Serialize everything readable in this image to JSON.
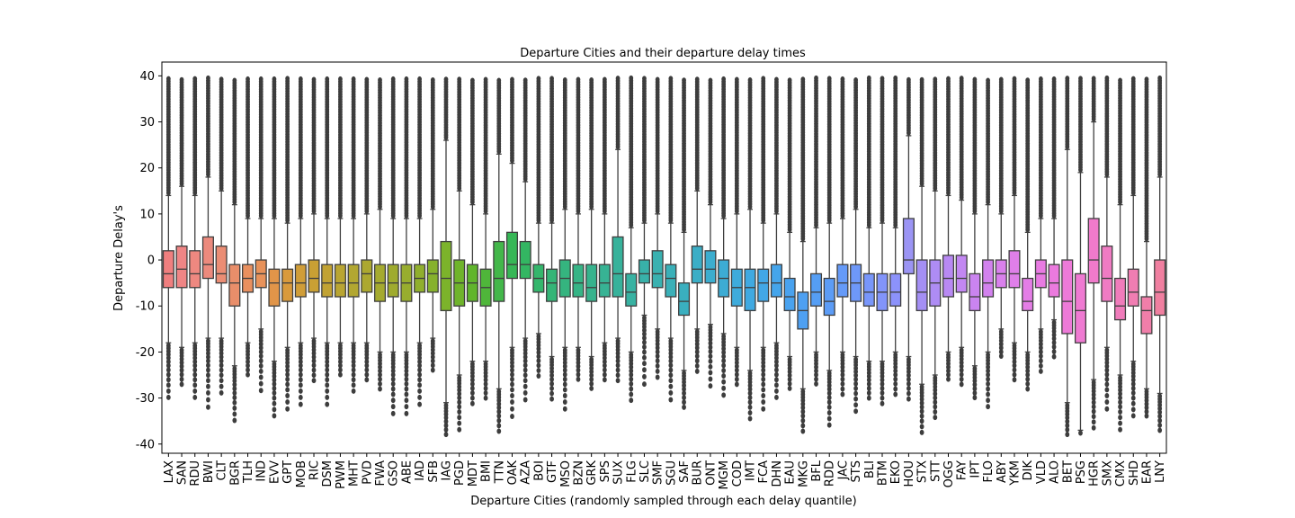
{
  "chart_data": {
    "type": "box",
    "title": "Departure Cities and their departure delay times",
    "xlabel": "Departure Cities (randomly sampled through each delay quantile)",
    "ylabel": "Departure Delay's",
    "ylim": [
      -42,
      43
    ],
    "yticks": [
      -40,
      -30,
      -20,
      -10,
      0,
      10,
      20,
      30,
      40
    ],
    "grid": false,
    "legend": "none",
    "outlier_marker_color": "#3d3d3d",
    "box_edge_color": "#3f3f3f",
    "categories": [
      "LAX",
      "SAN",
      "RDU",
      "BWI",
      "CLT",
      "BGR",
      "TLH",
      "IND",
      "EVV",
      "GPT",
      "MOB",
      "RIC",
      "DSM",
      "PWM",
      "MHT",
      "PVD",
      "FWA",
      "GSO",
      "ABE",
      "IAD",
      "SFB",
      "IAG",
      "PGD",
      "MDT",
      "BMI",
      "TTN",
      "OAK",
      "AZA",
      "BOI",
      "GTF",
      "MSO",
      "BZN",
      "GRK",
      "SPS",
      "SUX",
      "FLG",
      "SLC",
      "SMF",
      "SGU",
      "SAF",
      "BUR",
      "ONT",
      "MGM",
      "COD",
      "IMT",
      "FCA",
      "DHN",
      "EAU",
      "MKG",
      "BFL",
      "RDD",
      "JAC",
      "STS",
      "BLI",
      "BTM",
      "EKO",
      "HOU",
      "STX",
      "STT",
      "OGG",
      "FAY",
      "IPT",
      "FLO",
      "ABY",
      "YKM",
      "DIK",
      "VLD",
      "ALO",
      "BET",
      "PSG",
      "HGR",
      "SMX",
      "CMX",
      "SHD",
      "EAR",
      "LNY"
    ],
    "boxes": [
      {
        "q1": -6,
        "median": -3,
        "q3": 2,
        "wlow": -18,
        "whigh": 14,
        "color": "#f07f7f"
      },
      {
        "q1": -6,
        "median": -2,
        "q3": 3,
        "wlow": -19,
        "whigh": 16,
        "color": "#ef8585"
      },
      {
        "q1": -6,
        "median": -3,
        "q3": 2,
        "wlow": -18,
        "whigh": 14,
        "color": "#ee8880"
      },
      {
        "q1": -4,
        "median": -1,
        "q3": 5,
        "wlow": -17,
        "whigh": 18,
        "color": "#ec8a7d"
      },
      {
        "q1": -5,
        "median": -3,
        "q3": 3,
        "wlow": -17,
        "whigh": 15,
        "color": "#eb8d74"
      },
      {
        "q1": -10,
        "median": -5,
        "q3": -1,
        "wlow": -23,
        "whigh": 12,
        "color": "#e98e6a"
      },
      {
        "q1": -7,
        "median": -4,
        "q3": -1,
        "wlow": -18,
        "whigh": 9,
        "color": "#e9905f"
      },
      {
        "q1": -6,
        "median": -3,
        "q3": 0,
        "wlow": -15,
        "whigh": 9,
        "color": "#e8925a"
      },
      {
        "q1": -10,
        "median": -5,
        "q3": -2,
        "wlow": -22,
        "whigh": 9,
        "color": "#e19549"
      },
      {
        "q1": -9,
        "median": -5,
        "q3": -2,
        "wlow": -19,
        "whigh": 8,
        "color": "#d99a3c"
      },
      {
        "q1": -8,
        "median": -5,
        "q3": -1,
        "wlow": -18,
        "whigh": 9,
        "color": "#d09d38"
      },
      {
        "q1": -7,
        "median": -4,
        "q3": 0,
        "wlow": -17,
        "whigh": 10,
        "color": "#c9a034"
      },
      {
        "q1": -8,
        "median": -5,
        "q3": -1,
        "wlow": -18,
        "whigh": 9,
        "color": "#c1a233"
      },
      {
        "q1": -8,
        "median": -5,
        "q3": -1,
        "wlow": -18,
        "whigh": 9,
        "color": "#b9a532"
      },
      {
        "q1": -8,
        "median": -5,
        "q3": -1,
        "wlow": -18,
        "whigh": 9,
        "color": "#b2a731"
      },
      {
        "q1": -7,
        "median": -3,
        "q3": 0,
        "wlow": -18,
        "whigh": 10,
        "color": "#aca830"
      },
      {
        "q1": -9,
        "median": -5,
        "q3": -1,
        "wlow": -20,
        "whigh": 11,
        "color": "#a5aa2f"
      },
      {
        "q1": -8,
        "median": -5,
        "q3": -1,
        "wlow": -20,
        "whigh": 9,
        "color": "#9fab2e"
      },
      {
        "q1": -9,
        "median": -5,
        "q3": -1,
        "wlow": -20,
        "whigh": 9,
        "color": "#98ad2e"
      },
      {
        "q1": -7,
        "median": -4,
        "q3": -1,
        "wlow": -18,
        "whigh": 9,
        "color": "#90af2d"
      },
      {
        "q1": -7,
        "median": -3,
        "q3": 0,
        "wlow": -17,
        "whigh": 11,
        "color": "#86b12c"
      },
      {
        "q1": -11,
        "median": -4,
        "q3": 4,
        "wlow": -31,
        "whigh": 26,
        "color": "#7cb32b"
      },
      {
        "q1": -10,
        "median": -5,
        "q3": 0,
        "wlow": -25,
        "whigh": 15,
        "color": "#6fb42b"
      },
      {
        "q1": -9,
        "median": -5,
        "q3": -1,
        "wlow": -22,
        "whigh": 12,
        "color": "#60b52c"
      },
      {
        "q1": -10,
        "median": -6,
        "q3": -2,
        "wlow": -22,
        "whigh": 10,
        "color": "#4fb63a"
      },
      {
        "q1": -9,
        "median": -4,
        "q3": 4,
        "wlow": -28,
        "whigh": 23,
        "color": "#43b74a"
      },
      {
        "q1": -4,
        "median": -1,
        "q3": 6,
        "wlow": -19,
        "whigh": 21,
        "color": "#37b756"
      },
      {
        "q1": -4,
        "median": -1,
        "q3": 4,
        "wlow": -17,
        "whigh": 17,
        "color": "#33b662"
      },
      {
        "q1": -7,
        "median": -4,
        "q3": -1,
        "wlow": -16,
        "whigh": 8,
        "color": "#34b66c"
      },
      {
        "q1": -9,
        "median": -5,
        "q3": -2,
        "wlow": -21,
        "whigh": 8,
        "color": "#35b577"
      },
      {
        "q1": -8,
        "median": -4,
        "q3": 0,
        "wlow": -19,
        "whigh": 11,
        "color": "#35b47f"
      },
      {
        "q1": -8,
        "median": -5,
        "q3": -1,
        "wlow": -19,
        "whigh": 10,
        "color": "#36b486"
      },
      {
        "q1": -9,
        "median": -6,
        "q3": -1,
        "wlow": -21,
        "whigh": 11,
        "color": "#36b38d"
      },
      {
        "q1": -8,
        "median": -5,
        "q3": -1,
        "wlow": -18,
        "whigh": 10,
        "color": "#37b394"
      },
      {
        "q1": -8,
        "median": -3,
        "q3": 5,
        "wlow": -17,
        "whigh": 24,
        "color": "#37b29b"
      },
      {
        "q1": -10,
        "median": -7,
        "q3": -3,
        "wlow": -20,
        "whigh": 7,
        "color": "#38b2a2"
      },
      {
        "q1": -5,
        "median": -3,
        "q3": 0,
        "wlow": -12,
        "whigh": 8,
        "color": "#38b1a9"
      },
      {
        "q1": -6,
        "median": -3,
        "q3": 2,
        "wlow": -15,
        "whigh": 10,
        "color": "#39b1b0"
      },
      {
        "q1": -8,
        "median": -4,
        "q3": -1,
        "wlow": -17,
        "whigh": 8,
        "color": "#3ab0b8"
      },
      {
        "q1": -12,
        "median": -9,
        "q3": -5,
        "wlow": -24,
        "whigh": 6,
        "color": "#3aafbf"
      },
      {
        "q1": -5,
        "median": -2,
        "q3": 3,
        "wlow": -15,
        "whigh": 15,
        "color": "#3baec6"
      },
      {
        "q1": -5,
        "median": -2,
        "q3": 2,
        "wlow": -14,
        "whigh": 12,
        "color": "#3cadce"
      },
      {
        "q1": -8,
        "median": -4,
        "q3": 0,
        "wlow": -16,
        "whigh": 9,
        "color": "#3dacd4"
      },
      {
        "q1": -10,
        "median": -6,
        "q3": -2,
        "wlow": -19,
        "whigh": 10,
        "color": "#3eabdb"
      },
      {
        "q1": -11,
        "median": -6,
        "q3": -2,
        "wlow": -24,
        "whigh": 11,
        "color": "#40a9e1"
      },
      {
        "q1": -9,
        "median": -5,
        "q3": -2,
        "wlow": -19,
        "whigh": 8,
        "color": "#42a7e6"
      },
      {
        "q1": -8,
        "median": -5,
        "q3": -1,
        "wlow": -18,
        "whigh": 10,
        "color": "#45a5eb"
      },
      {
        "q1": -11,
        "median": -8,
        "q3": -4,
        "wlow": -21,
        "whigh": 6,
        "color": "#49a2ef"
      },
      {
        "q1": -15,
        "median": -11,
        "q3": -7,
        "wlow": -28,
        "whigh": 4,
        "color": "#4ea0f2"
      },
      {
        "q1": -10,
        "median": -7,
        "q3": -3,
        "wlow": -20,
        "whigh": 7,
        "color": "#559ef4"
      },
      {
        "q1": -12,
        "median": -9,
        "q3": -4,
        "wlow": -24,
        "whigh": 8,
        "color": "#5c9cf6"
      },
      {
        "q1": -8,
        "median": -5,
        "q3": -1,
        "wlow": -20,
        "whigh": 9,
        "color": "#659af8"
      },
      {
        "q1": -9,
        "median": -5,
        "q3": -1,
        "wlow": -21,
        "whigh": 11,
        "color": "#6e98f9"
      },
      {
        "q1": -10,
        "median": -7,
        "q3": -3,
        "wlow": -22,
        "whigh": 7,
        "color": "#7896fa"
      },
      {
        "q1": -11,
        "median": -7,
        "q3": -3,
        "wlow": -22,
        "whigh": 8,
        "color": "#8294fa"
      },
      {
        "q1": -10,
        "median": -7,
        "q3": -3,
        "wlow": -20,
        "whigh": 7,
        "color": "#8c92fb"
      },
      {
        "q1": -3,
        "median": 0,
        "q3": 9,
        "wlow": -21,
        "whigh": 27,
        "color": "#9b94f4"
      },
      {
        "q1": -11,
        "median": -7,
        "q3": 0,
        "wlow": -27,
        "whigh": 16,
        "color": "#a48ff4"
      },
      {
        "q1": -10,
        "median": -5,
        "q3": 0,
        "wlow": -25,
        "whigh": 15,
        "color": "#ae8cf4"
      },
      {
        "q1": -8,
        "median": -4,
        "q3": 1,
        "wlow": -20,
        "whigh": 14,
        "color": "#b889f3"
      },
      {
        "q1": -7,
        "median": -4,
        "q3": 1,
        "wlow": -19,
        "whigh": 13,
        "color": "#c287f2"
      },
      {
        "q1": -11,
        "median": -8,
        "q3": -3,
        "wlow": -23,
        "whigh": 10,
        "color": "#ca84f0"
      },
      {
        "q1": -8,
        "median": -5,
        "q3": 0,
        "wlow": -20,
        "whigh": 12,
        "color": "#d282ee"
      },
      {
        "q1": -6,
        "median": -3,
        "q3": 0,
        "wlow": -15,
        "whigh": 10,
        "color": "#d980ec"
      },
      {
        "q1": -6,
        "median": -3,
        "q3": 2,
        "wlow": -18,
        "whigh": 14,
        "color": "#df7fe9"
      },
      {
        "q1": -11,
        "median": -9,
        "q3": -4,
        "wlow": -20,
        "whigh": 6,
        "color": "#e47de6"
      },
      {
        "q1": -6,
        "median": -3,
        "q3": 0,
        "wlow": -15,
        "whigh": 9,
        "color": "#e87be2"
      },
      {
        "q1": -8,
        "median": -5,
        "q3": -1,
        "wlow": -13,
        "whigh": 9,
        "color": "#eb7ade"
      },
      {
        "q1": -16,
        "median": -9,
        "q3": 0,
        "wlow": -31,
        "whigh": 24,
        "color": "#ed7ad8"
      },
      {
        "q1": -18,
        "median": -11,
        "q3": -3,
        "wlow": -37,
        "whigh": 19,
        "color": "#ef7ad2"
      },
      {
        "q1": -5,
        "median": 0,
        "q3": 9,
        "wlow": -26,
        "whigh": 30,
        "color": "#f07acb"
      },
      {
        "q1": -9,
        "median": -4,
        "q3": 3,
        "wlow": -19,
        "whigh": 18,
        "color": "#f07bc3"
      },
      {
        "q1": -13,
        "median": -10,
        "q3": -4,
        "wlow": -25,
        "whigh": 12,
        "color": "#f07cbb"
      },
      {
        "q1": -10,
        "median": -7,
        "q3": -2,
        "wlow": -22,
        "whigh": 14,
        "color": "#f07db2"
      },
      {
        "q1": -16,
        "median": -11,
        "q3": -8,
        "wlow": -28,
        "whigh": 4,
        "color": "#f07ea9"
      },
      {
        "q1": -12,
        "median": -7,
        "q3": 0,
        "wlow": -29,
        "whigh": 18,
        "color": "#f07fa0"
      }
    ]
  }
}
